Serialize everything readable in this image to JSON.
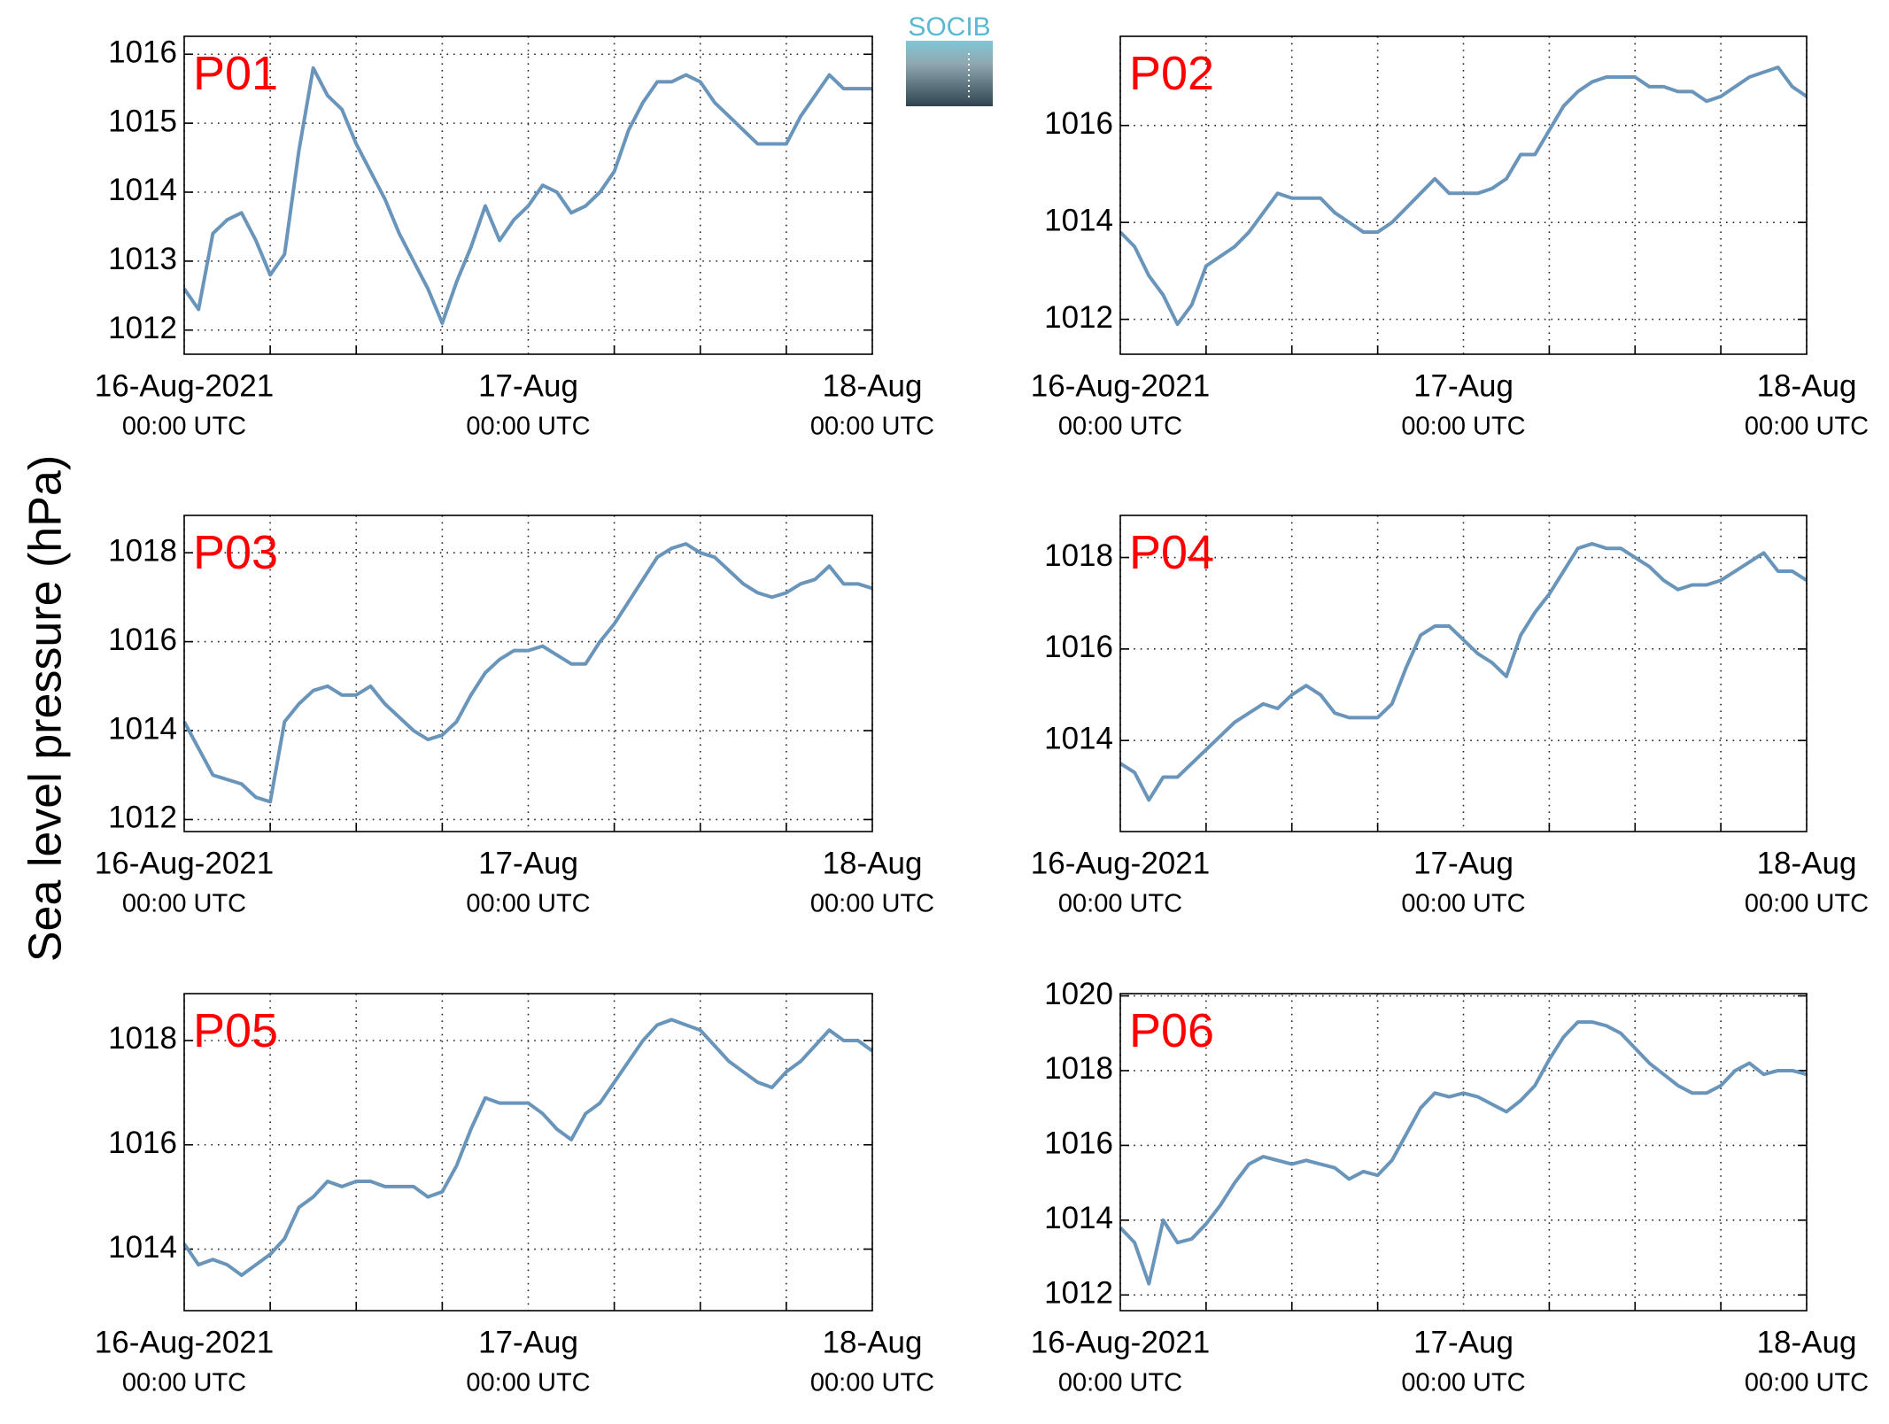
{
  "ylabel": "Sea level pressure (hPa)",
  "logo": "SOCIB",
  "chart_data": [
    {
      "type": "line",
      "title": "P01",
      "color": "#6a95bb",
      "grid": true,
      "x": [
        0,
        1,
        2,
        3,
        4,
        5,
        6,
        7,
        8,
        9,
        10,
        11,
        12,
        13,
        14,
        15,
        16,
        17,
        18,
        19,
        20,
        21,
        22,
        23,
        24,
        25,
        26,
        27,
        28,
        29,
        30,
        31,
        32,
        33,
        34,
        35,
        36,
        37,
        38,
        39,
        40,
        41,
        42,
        43,
        44,
        45,
        46,
        47,
        48
      ],
      "values": [
        1012.6,
        1012.3,
        1013.4,
        1013.6,
        1013.7,
        1013.3,
        1012.8,
        1013.1,
        1014.6,
        1015.8,
        1015.4,
        1015.2,
        1014.7,
        1014.3,
        1013.9,
        1013.4,
        1013.0,
        1012.6,
        1012.1,
        1012.7,
        1013.2,
        1013.8,
        1013.3,
        1013.6,
        1013.8,
        1014.1,
        1014.0,
        1013.7,
        1013.8,
        1014.0,
        1014.3,
        1014.9,
        1015.3,
        1015.6,
        1015.6,
        1015.7,
        1015.6,
        1015.3,
        1015.1,
        1014.9,
        1014.7,
        1014.7,
        1014.7,
        1015.1,
        1015.4,
        1015.7,
        1015.5,
        1015.5,
        1015.5
      ],
      "xlim": [
        0,
        48
      ],
      "xticks": [
        {
          "value": 0,
          "label": "16-Aug-2021",
          "sublabel": "00:00 UTC"
        },
        {
          "value": 24,
          "label": "17-Aug",
          "sublabel": "00:00 UTC"
        },
        {
          "value": 48,
          "label": "18-Aug",
          "sublabel": "00:00 UTC"
        }
      ],
      "xminorticks": [
        6,
        12,
        18,
        30,
        36,
        42
      ],
      "ylim": [
        1011.65,
        1016.26
      ],
      "yticks": [
        1012,
        1013,
        1014,
        1015,
        1016
      ]
    },
    {
      "type": "line",
      "title": "P02",
      "color": "#6a95bb",
      "grid": true,
      "x": [
        0,
        1,
        2,
        3,
        4,
        5,
        6,
        7,
        8,
        9,
        10,
        11,
        12,
        13,
        14,
        15,
        16,
        17,
        18,
        19,
        20,
        21,
        22,
        23,
        24,
        25,
        26,
        27,
        28,
        29,
        30,
        31,
        32,
        33,
        34,
        35,
        36,
        37,
        38,
        39,
        40,
        41,
        42,
        43,
        44,
        45,
        46,
        47,
        48
      ],
      "values": [
        1013.8,
        1013.5,
        1012.9,
        1012.5,
        1011.9,
        1012.3,
        1013.1,
        1013.3,
        1013.5,
        1013.8,
        1014.2,
        1014.6,
        1014.5,
        1014.5,
        1014.5,
        1014.2,
        1014.0,
        1013.8,
        1013.8,
        1014.0,
        1014.3,
        1014.6,
        1014.9,
        1014.6,
        1014.6,
        1014.6,
        1014.7,
        1014.9,
        1015.4,
        1015.4,
        1015.9,
        1016.4,
        1016.7,
        1016.9,
        1017.0,
        1017.0,
        1017.0,
        1016.8,
        1016.8,
        1016.7,
        1016.7,
        1016.5,
        1016.6,
        1016.8,
        1017.0,
        1017.1,
        1017.2,
        1016.8,
        1016.6
      ],
      "xlim": [
        0,
        48
      ],
      "xticks": [
        {
          "value": 0,
          "label": "16-Aug-2021",
          "sublabel": "00:00 UTC"
        },
        {
          "value": 24,
          "label": "17-Aug",
          "sublabel": "00:00 UTC"
        },
        {
          "value": 48,
          "label": "18-Aug",
          "sublabel": "00:00 UTC"
        }
      ],
      "xminorticks": [
        6,
        12,
        18,
        30,
        36,
        42
      ],
      "ylim": [
        1011.28,
        1017.84
      ],
      "yticks": [
        1012,
        1014,
        1016
      ]
    },
    {
      "type": "line",
      "title": "P03",
      "color": "#6a95bb",
      "grid": true,
      "x": [
        0,
        1,
        2,
        3,
        4,
        5,
        6,
        7,
        8,
        9,
        10,
        11,
        12,
        13,
        14,
        15,
        16,
        17,
        18,
        19,
        20,
        21,
        22,
        23,
        24,
        25,
        26,
        27,
        28,
        29,
        30,
        31,
        32,
        33,
        34,
        35,
        36,
        37,
        38,
        39,
        40,
        41,
        42,
        43,
        44,
        45,
        46,
        47,
        48
      ],
      "values": [
        1014.2,
        1013.6,
        1013.0,
        1012.9,
        1012.8,
        1012.5,
        1012.4,
        1014.2,
        1014.6,
        1014.9,
        1015.0,
        1014.8,
        1014.8,
        1015.0,
        1014.6,
        1014.3,
        1014.0,
        1013.8,
        1013.9,
        1014.2,
        1014.8,
        1015.3,
        1015.6,
        1015.8,
        1015.8,
        1015.9,
        1015.7,
        1015.5,
        1015.5,
        1016.0,
        1016.4,
        1016.9,
        1017.4,
        1017.9,
        1018.1,
        1018.2,
        1018.0,
        1017.9,
        1017.6,
        1017.3,
        1017.1,
        1017.0,
        1017.1,
        1017.3,
        1017.4,
        1017.7,
        1017.3,
        1017.3,
        1017.2
      ],
      "xlim": [
        0,
        48
      ],
      "xticks": [
        {
          "value": 0,
          "label": "16-Aug-2021",
          "sublabel": "00:00 UTC"
        },
        {
          "value": 24,
          "label": "17-Aug",
          "sublabel": "00:00 UTC"
        },
        {
          "value": 48,
          "label": "18-Aug",
          "sublabel": "00:00 UTC"
        }
      ],
      "xminorticks": [
        6,
        12,
        18,
        30,
        36,
        42
      ],
      "ylim": [
        1011.73,
        1018.84
      ],
      "yticks": [
        1012,
        1014,
        1016,
        1018
      ]
    },
    {
      "type": "line",
      "title": "P04",
      "color": "#6a95bb",
      "grid": true,
      "x": [
        0,
        1,
        2,
        3,
        4,
        5,
        6,
        7,
        8,
        9,
        10,
        11,
        12,
        13,
        14,
        15,
        16,
        17,
        18,
        19,
        20,
        21,
        22,
        23,
        24,
        25,
        26,
        27,
        28,
        29,
        30,
        31,
        32,
        33,
        34,
        35,
        36,
        37,
        38,
        39,
        40,
        41,
        42,
        43,
        44,
        45,
        46,
        47,
        48
      ],
      "values": [
        1013.5,
        1013.3,
        1012.7,
        1013.2,
        1013.2,
        1013.5,
        1013.8,
        1014.1,
        1014.4,
        1014.6,
        1014.8,
        1014.7,
        1015.0,
        1015.2,
        1015.0,
        1014.6,
        1014.5,
        1014.5,
        1014.5,
        1014.8,
        1015.6,
        1016.3,
        1016.5,
        1016.5,
        1016.2,
        1015.9,
        1015.7,
        1015.4,
        1016.3,
        1016.8,
        1017.2,
        1017.7,
        1018.2,
        1018.3,
        1018.2,
        1018.2,
        1018.0,
        1017.8,
        1017.5,
        1017.3,
        1017.4,
        1017.4,
        1017.5,
        1017.7,
        1017.9,
        1018.1,
        1017.7,
        1017.7,
        1017.5
      ],
      "xlim": [
        0,
        48
      ],
      "xticks": [
        {
          "value": 0,
          "label": "16-Aug-2021",
          "sublabel": "00:00 UTC"
        },
        {
          "value": 24,
          "label": "17-Aug",
          "sublabel": "00:00 UTC"
        },
        {
          "value": 48,
          "label": "18-Aug",
          "sublabel": "00:00 UTC"
        }
      ],
      "xminorticks": [
        6,
        12,
        18,
        30,
        36,
        42
      ],
      "ylim": [
        1012.01,
        1018.92
      ],
      "yticks": [
        1014,
        1016,
        1018
      ]
    },
    {
      "type": "line",
      "title": "P05",
      "color": "#6a95bb",
      "grid": true,
      "x": [
        0,
        1,
        2,
        3,
        4,
        5,
        6,
        7,
        8,
        9,
        10,
        11,
        12,
        13,
        14,
        15,
        16,
        17,
        18,
        19,
        20,
        21,
        22,
        23,
        24,
        25,
        26,
        27,
        28,
        29,
        30,
        31,
        32,
        33,
        34,
        35,
        36,
        37,
        38,
        39,
        40,
        41,
        42,
        43,
        44,
        45,
        46,
        47,
        48
      ],
      "values": [
        1014.1,
        1013.7,
        1013.8,
        1013.7,
        1013.5,
        1013.7,
        1013.9,
        1014.2,
        1014.8,
        1015.0,
        1015.3,
        1015.2,
        1015.3,
        1015.3,
        1015.2,
        1015.2,
        1015.2,
        1015.0,
        1015.1,
        1015.6,
        1016.3,
        1016.9,
        1016.8,
        1016.8,
        1016.8,
        1016.6,
        1016.3,
        1016.1,
        1016.6,
        1016.8,
        1017.2,
        1017.6,
        1018.0,
        1018.3,
        1018.4,
        1018.3,
        1018.2,
        1017.9,
        1017.6,
        1017.4,
        1017.2,
        1017.1,
        1017.4,
        1017.6,
        1017.9,
        1018.2,
        1018.0,
        1018.0,
        1017.8
      ],
      "xlim": [
        0,
        48
      ],
      "xticks": [
        {
          "value": 0,
          "label": "16-Aug-2021",
          "sublabel": "00:00 UTC"
        },
        {
          "value": 24,
          "label": "17-Aug",
          "sublabel": "00:00 UTC"
        },
        {
          "value": 48,
          "label": "18-Aug",
          "sublabel": "00:00 UTC"
        }
      ],
      "xminorticks": [
        6,
        12,
        18,
        30,
        36,
        42
      ],
      "ylim": [
        1012.82,
        1018.9
      ],
      "yticks": [
        1014,
        1016,
        1018
      ]
    },
    {
      "type": "line",
      "title": "P06",
      "color": "#6a95bb",
      "grid": true,
      "x": [
        0,
        1,
        2,
        3,
        4,
        5,
        6,
        7,
        8,
        9,
        10,
        11,
        12,
        13,
        14,
        15,
        16,
        17,
        18,
        19,
        20,
        21,
        22,
        23,
        24,
        25,
        26,
        27,
        28,
        29,
        30,
        31,
        32,
        33,
        34,
        35,
        36,
        37,
        38,
        39,
        40,
        41,
        42,
        43,
        44,
        45,
        46,
        47,
        48
      ],
      "values": [
        1013.8,
        1013.4,
        1012.3,
        1014.0,
        1013.4,
        1013.5,
        1013.9,
        1014.4,
        1015.0,
        1015.5,
        1015.7,
        1015.6,
        1015.5,
        1015.6,
        1015.5,
        1015.4,
        1015.1,
        1015.3,
        1015.2,
        1015.6,
        1016.3,
        1017.0,
        1017.4,
        1017.3,
        1017.4,
        1017.3,
        1017.1,
        1016.9,
        1017.2,
        1017.6,
        1018.3,
        1018.9,
        1019.3,
        1019.3,
        1019.2,
        1019.0,
        1018.6,
        1018.2,
        1017.9,
        1017.6,
        1017.4,
        1017.4,
        1017.6,
        1018.0,
        1018.2,
        1017.9,
        1018.0,
        1018.0,
        1017.9
      ],
      "xlim": [
        0,
        48
      ],
      "xticks": [
        {
          "value": 0,
          "label": "16-Aug-2021",
          "sublabel": "00:00 UTC"
        },
        {
          "value": 24,
          "label": "17-Aug",
          "sublabel": "00:00 UTC"
        },
        {
          "value": 48,
          "label": "18-Aug",
          "sublabel": "00:00 UTC"
        }
      ],
      "xminorticks": [
        6,
        12,
        18,
        30,
        36,
        42
      ],
      "ylim": [
        1011.58,
        1020.06
      ],
      "yticks": [
        1012,
        1014,
        1016,
        1018,
        1020
      ]
    }
  ]
}
